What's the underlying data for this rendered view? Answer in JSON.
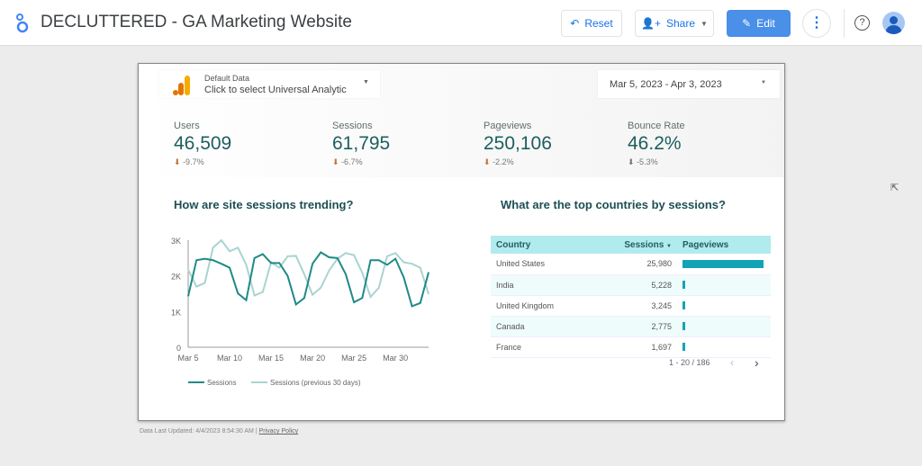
{
  "app": {
    "title": "DECLUTTERED - GA Marketing Website",
    "reset": "Reset",
    "share": "Share",
    "edit": "Edit"
  },
  "controls": {
    "data_label": "Default Data",
    "data_value": "Click to select Universal Analytic",
    "date_range": "Mar 5, 2023 - Apr 3, 2023"
  },
  "kpis": [
    {
      "label": "Users",
      "value": "46,509",
      "delta": "-9.7%"
    },
    {
      "label": "Sessions",
      "value": "61,795",
      "delta": "-6.7%"
    },
    {
      "label": "Pageviews",
      "value": "250,106",
      "delta": "-2.2%"
    },
    {
      "label": "Bounce Rate",
      "value": "46.2%",
      "delta": "-5.3%"
    }
  ],
  "trend": {
    "title": "How are site sessions trending?"
  },
  "countries": {
    "title": "What are the top countries by sessions?",
    "headers": [
      "Country",
      "Sessions",
      "Pageviews"
    ],
    "rows": [
      {
        "country": "United States",
        "sessions": "25,980",
        "pv_share": 1.0
      },
      {
        "country": "India",
        "sessions": "5,228",
        "pv_share": 0.035
      },
      {
        "country": "United Kingdom",
        "sessions": "3,245",
        "pv_share": 0.025
      },
      {
        "country": "Canada",
        "sessions": "2,775",
        "pv_share": 0.025
      },
      {
        "country": "France",
        "sessions": "1,697",
        "pv_share": 0.012
      }
    ],
    "pagination": "1 - 20 / 186"
  },
  "footer": {
    "updated": "Data Last Updated: 4/4/2023 8:54:30 AM",
    "sep": "|",
    "privacy": "Privacy Policy"
  },
  "colors": {
    "sessions": "#1f8a86",
    "previous": "#a9d4d0",
    "accent": "#4a8fe8",
    "bar": "#13a3b6"
  },
  "chart_data": {
    "type": "line",
    "x_ticks": [
      "Mar 5",
      "Mar 10",
      "Mar 15",
      "Mar 20",
      "Mar 25",
      "Mar 30"
    ],
    "y_ticks": [
      "0",
      "1K",
      "2K",
      "3K"
    ],
    "ylim": [
      0,
      3000
    ],
    "x": [
      "Mar 5",
      "Mar 6",
      "Mar 7",
      "Mar 8",
      "Mar 9",
      "Mar 10",
      "Mar 11",
      "Mar 12",
      "Mar 13",
      "Mar 14",
      "Mar 15",
      "Mar 16",
      "Mar 17",
      "Mar 18",
      "Mar 19",
      "Mar 20",
      "Mar 21",
      "Mar 22",
      "Mar 23",
      "Mar 24",
      "Mar 25",
      "Mar 26",
      "Mar 27",
      "Mar 28",
      "Mar 29",
      "Mar 30",
      "Mar 31",
      "Apr 1",
      "Apr 2",
      "Apr 3"
    ],
    "legend": "bottom",
    "series": [
      {
        "name": "Sessions",
        "values": [
          1430,
          2440,
          2480,
          2440,
          2340,
          2230,
          1510,
          1320,
          2500,
          2610,
          2360,
          2360,
          2000,
          1200,
          1380,
          2340,
          2660,
          2520,
          2500,
          2050,
          1260,
          1380,
          2440,
          2440,
          2310,
          2480,
          1960,
          1150,
          1240,
          2100
        ]
      },
      {
        "name": "Sessions (previous 30 days)",
        "values": [
          2170,
          1700,
          1800,
          2790,
          3000,
          2690,
          2790,
          2310,
          1450,
          1550,
          2380,
          2230,
          2550,
          2560,
          2050,
          1470,
          1670,
          2150,
          2480,
          2640,
          2580,
          2090,
          1410,
          1670,
          2550,
          2640,
          2380,
          2340,
          2230,
          1490
        ]
      }
    ]
  }
}
